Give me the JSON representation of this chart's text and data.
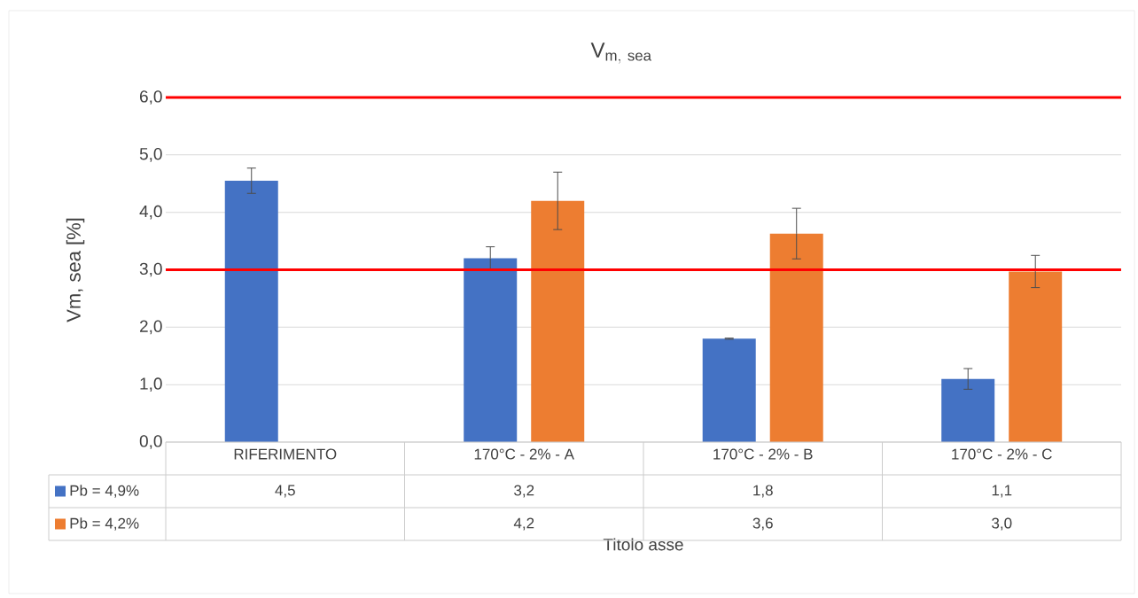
{
  "chart_data": {
    "type": "bar",
    "title": "\\mathrm{V}_{\\mathrm{m,\\ sea}}",
    "ylabel": "Vm, sea [%]",
    "xlabel": "Titolo asse",
    "categories": [
      "RIFERIMENTO",
      "170°C - 2% - A",
      "170°C - 2% - B",
      "170°C - 2% - C"
    ],
    "series": [
      {
        "name": "Pb = 4,9%",
        "color": "#4472c4",
        "values": [
          4.55,
          3.2,
          1.8,
          1.1
        ],
        "errors": [
          0.22,
          0.2,
          0.01,
          0.18
        ],
        "value_labels": [
          "4,5",
          "3,2",
          "1,8",
          "1,1"
        ]
      },
      {
        "name": "Pb = 4,2%",
        "color": "#ed7d31",
        "values": [
          null,
          4.2,
          3.63,
          2.97
        ],
        "errors": [
          null,
          0.5,
          0.44,
          0.28
        ],
        "value_labels": [
          null,
          "4,2",
          "3,6",
          "3,0"
        ]
      }
    ],
    "ylim": [
      0,
      6
    ],
    "yticks": [
      {
        "value": 0,
        "label": "0,0"
      },
      {
        "value": 1,
        "label": "1,0"
      },
      {
        "value": 2,
        "label": "2,0"
      },
      {
        "value": 3,
        "label": "3,0"
      },
      {
        "value": 4,
        "label": "4,0"
      },
      {
        "value": 5,
        "label": "5,0"
      },
      {
        "value": 6,
        "label": "6,0"
      }
    ],
    "grid": "y",
    "legend": "bottom",
    "ref_lines": [
      {
        "axis": "y",
        "value": 6,
        "color": "#ff0000"
      },
      {
        "axis": "y",
        "value": 3,
        "color": "#ff0000"
      }
    ]
  }
}
